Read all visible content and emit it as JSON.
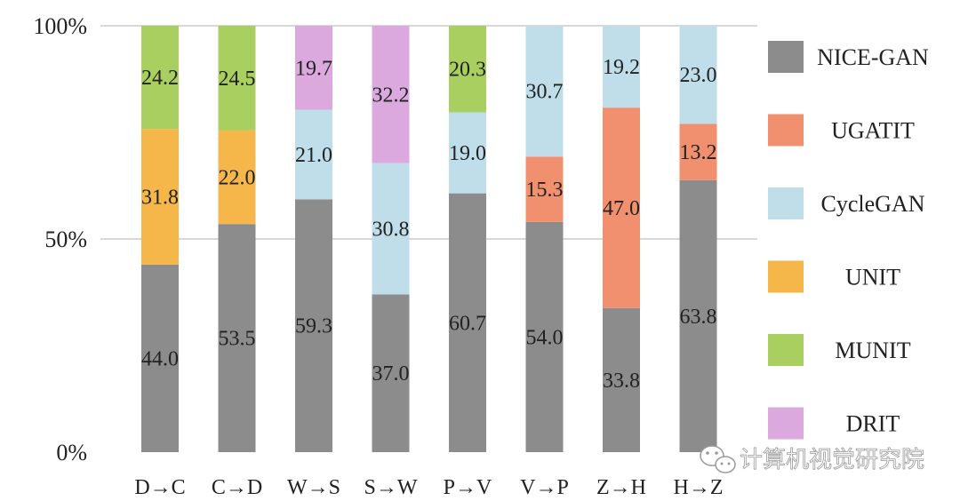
{
  "chart_data": {
    "type": "bar",
    "stacked": true,
    "normalized": true,
    "categories": [
      "D→C",
      "C→D",
      "W→S",
      "S→W",
      "P→V",
      "V→P",
      "Z→H",
      "H→Z"
    ],
    "series": [
      {
        "name": "NICE-GAN",
        "color": "#8c8c8c",
        "values": [
          44.0,
          53.5,
          59.3,
          37.0,
          60.7,
          54.0,
          33.8,
          63.8
        ]
      },
      {
        "name": "UGATIT",
        "color": "#f0906e",
        "values": [
          null,
          null,
          null,
          null,
          null,
          15.3,
          47.0,
          13.2
        ]
      },
      {
        "name": "CycleGAN",
        "color": "#bfdeea",
        "values": [
          null,
          null,
          21.0,
          30.8,
          19.0,
          30.7,
          19.2,
          23.0
        ]
      },
      {
        "name": "UNIT",
        "color": "#f5b749",
        "values": [
          31.8,
          22.0,
          null,
          null,
          null,
          null,
          null,
          null
        ]
      },
      {
        "name": "MUNIT",
        "color": "#a8cf5f",
        "values": [
          24.2,
          24.5,
          null,
          null,
          20.3,
          null,
          null,
          null
        ]
      },
      {
        "name": "DRIT",
        "color": "#dca9df",
        "values": [
          null,
          null,
          19.7,
          32.2,
          null,
          null,
          null,
          null
        ]
      }
    ],
    "yticks": [
      "0%",
      "50%",
      "100%"
    ],
    "ylim": [
      0,
      100
    ],
    "legend_position": "right",
    "grid": "horizontal at 50% and 100%"
  },
  "watermark": {
    "text": "计算机视觉研究院",
    "icon": "wechat-icon"
  }
}
